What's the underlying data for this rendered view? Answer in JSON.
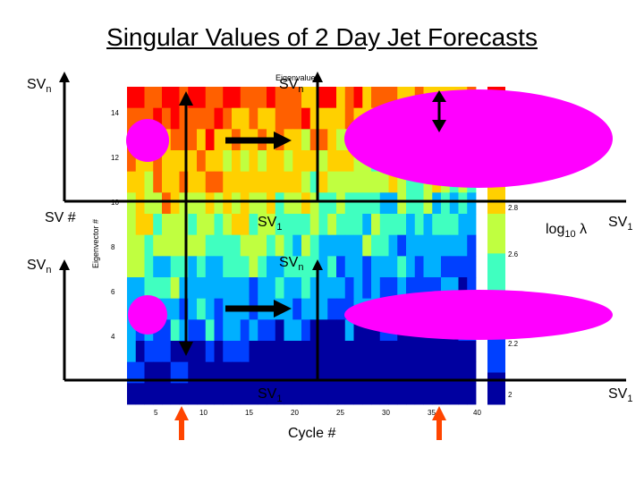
{
  "slide_title": "Singular Values of 2 Day Jet Forecasts",
  "chart_data": {
    "type": "heatmap",
    "title": "Eigenvalues",
    "xlabel": "Cycle #",
    "ylabel": "Eigenvector #",
    "x_ticks": [
      "5",
      "10",
      "15",
      "20",
      "25",
      "30",
      "35",
      "40"
    ],
    "y_ticks": [
      "4",
      "6",
      "8",
      "10",
      "12",
      "14"
    ],
    "colorbar_ticks": [
      "2",
      "2.2",
      "2.6",
      "2.8"
    ],
    "colorbar_colors": [
      "#0000a0",
      "#0040ff",
      "#00b0ff",
      "#40ffc0",
      "#c0ff40",
      "#ffd000",
      "#ff6000",
      "#ff0000"
    ]
  },
  "annotations": {
    "sv_n": "SV",
    "sv_1": "SV",
    "sub_n": "n",
    "sub_1": "1",
    "sv_number": "SV #",
    "log_label": "log",
    "log_sub": "10",
    "lambda": "λ",
    "cycle_label": "Cycle #"
  },
  "colors": {
    "magenta": "#ff00ff",
    "arrow_orange": "#ff4500",
    "axis": "#000000"
  }
}
